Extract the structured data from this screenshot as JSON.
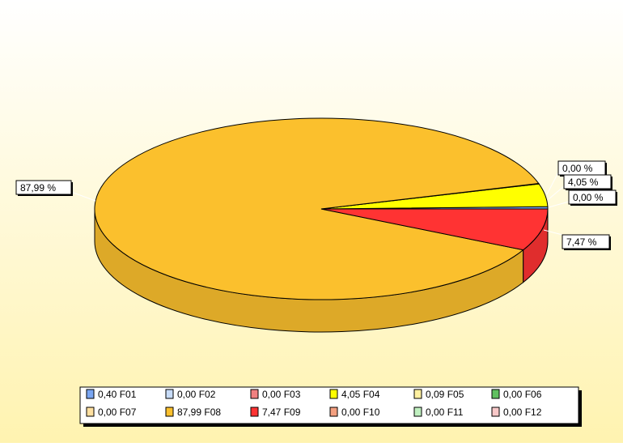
{
  "chart_data": {
    "type": "pie",
    "title": "",
    "slices": [
      {
        "label": "F01",
        "value": 0.4,
        "color": "#7aa6f2"
      },
      {
        "label": "F02",
        "value": 0.0,
        "color": "#c8dcf8"
      },
      {
        "label": "F03",
        "value": 0.0,
        "color": "#f08080"
      },
      {
        "label": "F04",
        "value": 4.05,
        "color": "#ffff00"
      },
      {
        "label": "F05",
        "value": 0.09,
        "color": "#fff0a0"
      },
      {
        "label": "F06",
        "value": 0.0,
        "color": "#60c060"
      },
      {
        "label": "F07",
        "value": 0.0,
        "color": "#ffe0a0"
      },
      {
        "label": "F08",
        "value": 87.99,
        "color": "#fbc02d"
      },
      {
        "label": "F09",
        "value": 7.47,
        "color": "#ff3333"
      },
      {
        "label": "F10",
        "value": 0.0,
        "color": "#f4a080"
      },
      {
        "label": "F11",
        "value": 0.0,
        "color": "#c0f0c0"
      },
      {
        "label": "F12",
        "value": 0.0,
        "color": "#f8c8c8"
      }
    ],
    "callouts": [
      "87,99 %",
      "0,00 %",
      "4,05 %",
      "0,00 %",
      "7,47 %"
    ],
    "legend_placement": "bottom",
    "legend": [
      "0,40 F01",
      "0,00 F02",
      "0,00 F03",
      "4,05 F04",
      "0,09 F05",
      "0,00 F06",
      "0,00 F07",
      "87,99 F08",
      "7,47 F09",
      "0,00 F10",
      "0,00 F11",
      "0,00 F12"
    ]
  }
}
